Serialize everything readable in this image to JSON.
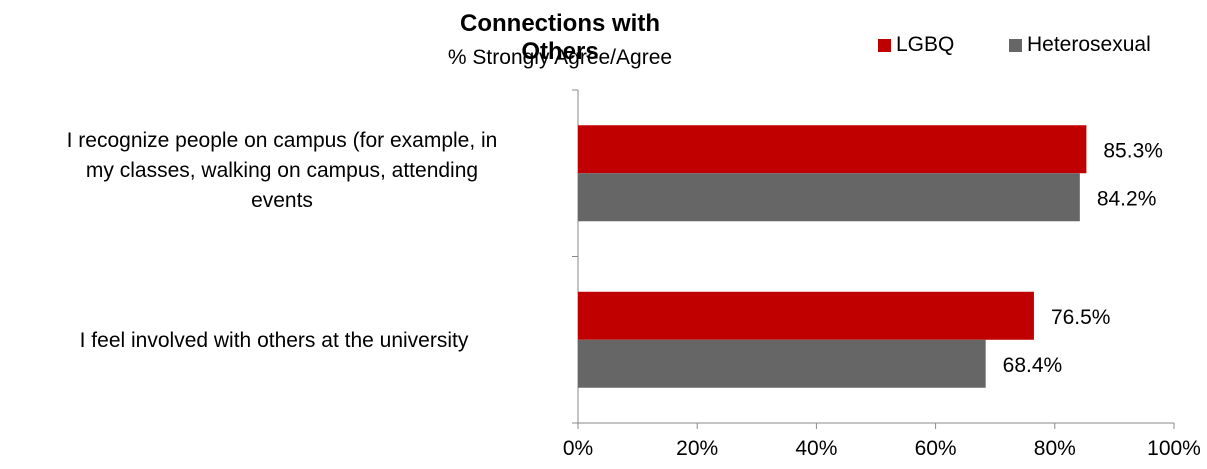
{
  "chart_data": {
    "type": "bar",
    "orientation": "horizontal",
    "title": "Connections with Others",
    "subtitle": "% Strongly Agree/Agree",
    "categories": [
      "I recognize people on campus (for example, in my classes, walking on campus, attending events",
      "I feel involved with others at the university"
    ],
    "category_lines": [
      [
        "I recognize people on campus (for example, in",
        "my classes, walking on campus, attending",
        "events"
      ],
      [
        "I feel involved with others at the university"
      ]
    ],
    "series": [
      {
        "name": "LGBQ",
        "values": [
          85.3,
          76.5
        ],
        "labels": [
          "85.3%",
          "76.5%"
        ],
        "color": "#c00000"
      },
      {
        "name": "Heterosexual",
        "values": [
          84.2,
          68.4
        ],
        "labels": [
          "84.2%",
          "68.4%"
        ],
        "color": "#666666"
      }
    ],
    "xlim": [
      0,
      100
    ],
    "xticks": [
      "0%",
      "20%",
      "40%",
      "60%",
      "80%",
      "100%"
    ],
    "legend": "top-right",
    "grid": false
  }
}
